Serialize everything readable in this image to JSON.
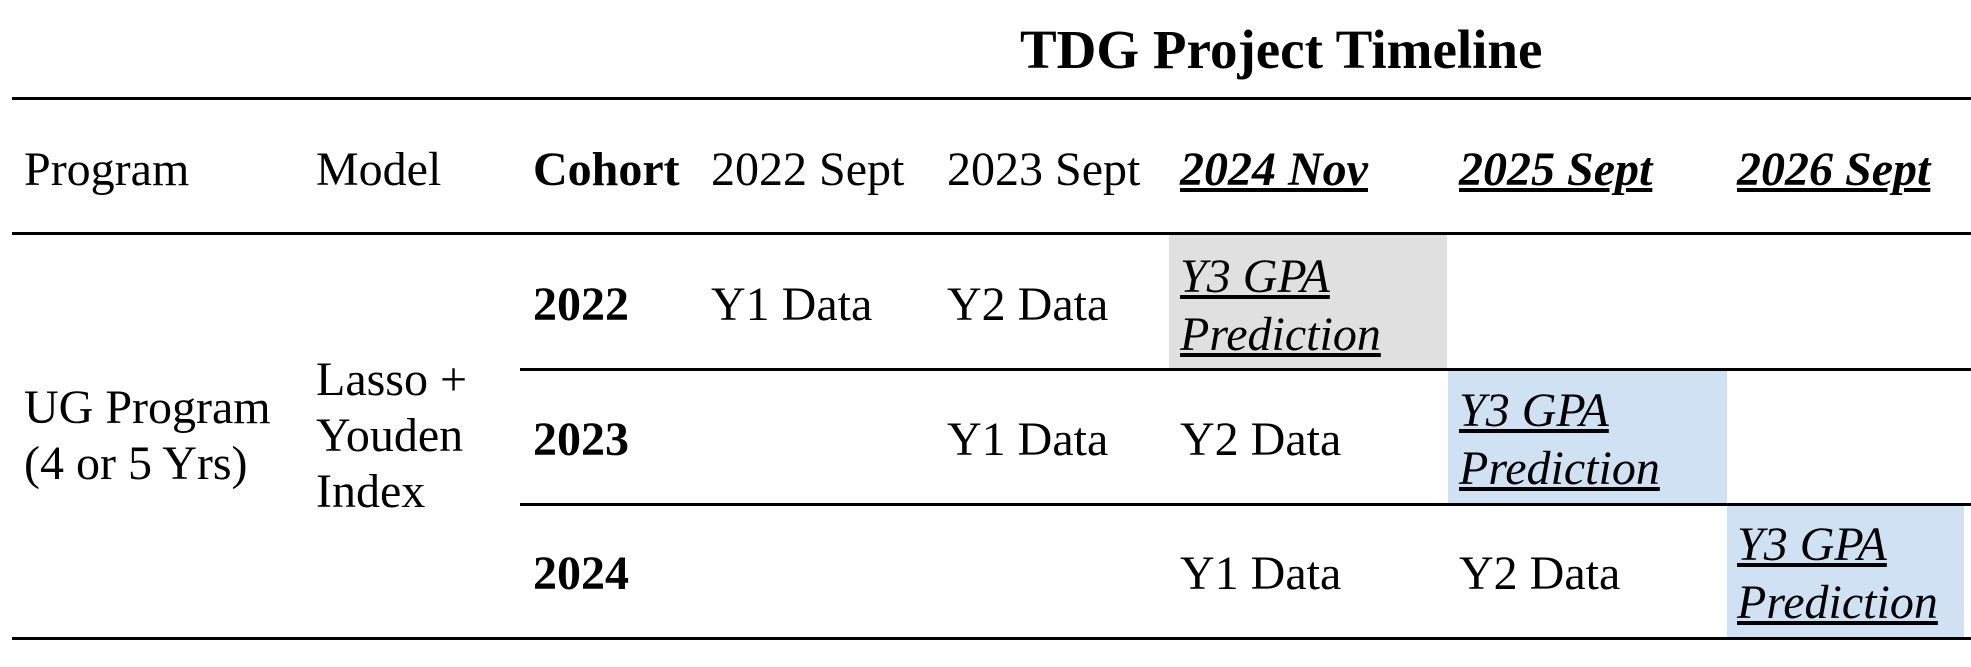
{
  "title": "TDG Project Timeline",
  "headers": {
    "program": "Program",
    "model": "Model",
    "cohort": "Cohort",
    "cols": [
      "2022 Sept",
      "2023 Sept",
      "2024 Nov",
      "2025 Sept",
      "2026 Sept"
    ]
  },
  "program": {
    "line1": "UG Program",
    "line2": "(4 or 5 Yrs)"
  },
  "model": {
    "line1": "Lasso +",
    "line2": "Youden",
    "line3": "Index"
  },
  "rows": [
    {
      "cohort": "2022",
      "c1": "Y1 Data",
      "c2": "Y2 Data",
      "pred": [
        "Y3 GPA",
        "Prediction"
      ]
    },
    {
      "cohort": "2023",
      "c2": "Y1 Data",
      "c3": "Y2 Data",
      "pred": [
        "Y3 GPA",
        "Prediction"
      ]
    },
    {
      "cohort": "2024",
      "c3": "Y1 Data",
      "c4": "Y2 Data",
      "pred": [
        "Y3 GPA",
        "Prediction"
      ]
    }
  ],
  "colors": {
    "highlight_gray": "#e0e0e0",
    "highlight_blue": "#d0e1f4"
  }
}
